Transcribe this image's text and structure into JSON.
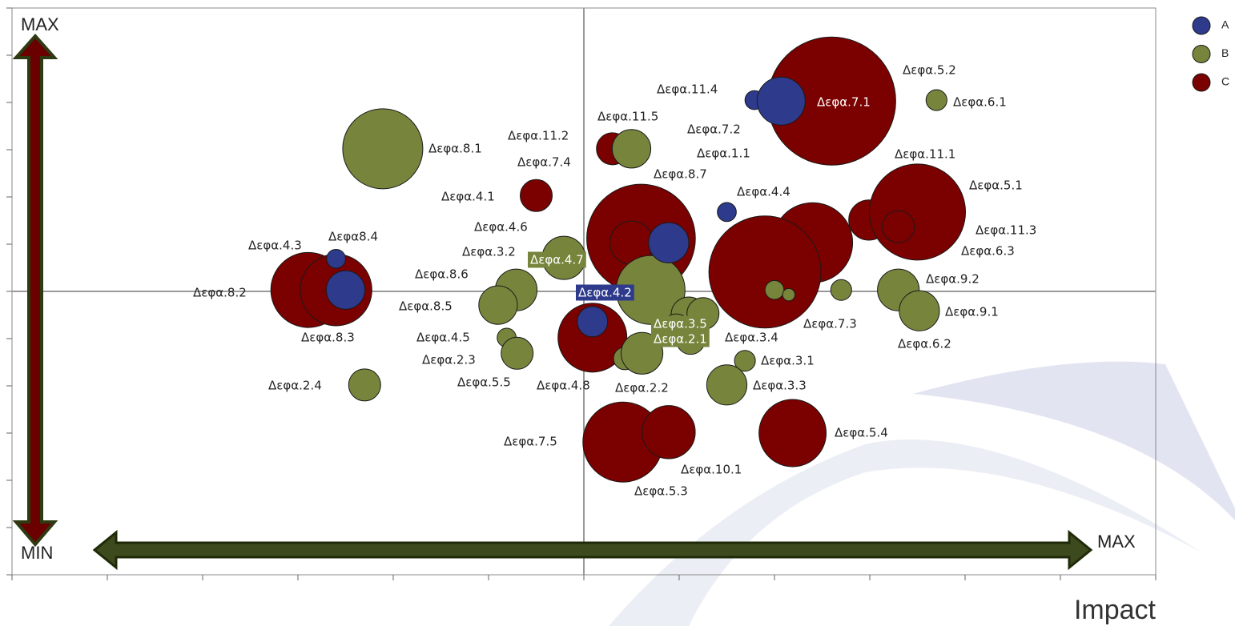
{
  "chart_data": {
    "type": "bubble",
    "x_label": "Impact",
    "y_max_label": "MAX",
    "y_min_label": "MIN",
    "x_max_label": "MAX",
    "xlim": [
      0,
      12
    ],
    "ylim": [
      0,
      12
    ],
    "xticks": [
      0,
      1,
      2,
      3,
      4,
      5,
      6,
      7,
      8,
      9,
      10,
      11,
      12
    ],
    "yticks": [
      0,
      1,
      2,
      3,
      4,
      5,
      6,
      7,
      8,
      9,
      10,
      11,
      12
    ],
    "reference_lines": {
      "x": 6,
      "y": 6
    },
    "legend": "top-right",
    "series": [
      {
        "name": "C",
        "color": "#7b0000",
        "labels": [
          "Δεφα.7.1",
          "Δεφα.5.2",
          "Δεφα.11.2",
          "Δεφα.4.1",
          "Δεφα.7.4",
          "Δεφα.4.6",
          "Δεφα.4.4",
          "Δεφα.11.1",
          "Δεφα.5.1",
          "Δεφα.11.3",
          "Δεφα.8.2",
          "Δεφα.8.3",
          "Δεφα.5.5",
          "Δεφα.7.5",
          "Δεφα.5.3",
          "Δεφα.5.4"
        ],
        "x": [
          8.6,
          8.4,
          6.3,
          5.5,
          6.6,
          6.5,
          7.9,
          8.99,
          9.5,
          9.3,
          3.11,
          3.4,
          6.09,
          6.41,
          6.89,
          8.19
        ],
        "values": [
          10.03,
          7.03,
          9.02,
          8.03,
          7.12,
          7.03,
          6.41,
          7.51,
          7.68,
          7.37,
          6.03,
          6.03,
          5.02,
          2.81,
          3.02,
          3.0
        ],
        "sizes": [
          64,
          25,
          4,
          4,
          46,
          7.3,
          49,
          6.3,
          36,
          4,
          22,
          20,
          18.5,
          25,
          11,
          17.6
        ]
      },
      {
        "name": "B",
        "color": "#77843c",
        "labels": [
          "Δεφα.6.1",
          "Δεφα.11.5",
          "Δεφα.8.1",
          "Δεφα.4.7",
          "Δεφα.8.6",
          "Δεφα.8.5",
          "Δεφα.3.2",
          "Δεφα.6.3",
          "Δεφα.7.3",
          "Δεφα.6.2",
          "Δεφα.9.2",
          "Δεφα.9.1",
          "Δεφα.3.5",
          "Δεφα.3.4",
          "Δεφα.2.1",
          "Δεφα.10.1",
          "Δεφα.4.8",
          "Δεφα.2.2",
          "Δεφα.3.1",
          "Δεφα.3.3",
          "Δεφα.4.5",
          "Δεφα.2.3",
          "Δεφα.2.4"
        ],
        "x": [
          9.7,
          6.5,
          3.89,
          5.79,
          5.29,
          5.1,
          6.7,
          8.0,
          8.15,
          8.7,
          9.3,
          9.52,
          7.1,
          7.25,
          6.97,
          7.12,
          6.43,
          6.61,
          7.69,
          7.5,
          5.19,
          5.3,
          3.7
        ],
        "values": [
          10.05,
          9.02,
          9.02,
          6.71,
          6.03,
          5.71,
          6.03,
          6.03,
          5.93,
          6.03,
          6.03,
          5.59,
          5.51,
          5.53,
          5.22,
          4.97,
          4.58,
          4.69,
          4.53,
          4.02,
          5.02,
          4.69,
          4.02
        ],
        "sizes": [
          1.7,
          5.8,
          25,
          7.3,
          6.8,
          5.8,
          18.5,
          1.4,
          0.6,
          1.7,
          6.8,
          6.3,
          4.8,
          4,
          3.2,
          3.2,
          2,
          6.8,
          1.7,
          6.3,
          1.4,
          4,
          4
        ]
      },
      {
        "name": "A",
        "color": "#2e3a8c",
        "labels": [
          "Δεφα.11.4",
          "Δεφα.7.2",
          "Δεφα.1.1",
          "Δεφα.8.7",
          "Δεφα.4.3",
          "Δεφα8.4",
          "Δεφα.4.2"
        ],
        "x": [
          7.79,
          8.07,
          7.5,
          6.89,
          3.4,
          3.5,
          6.09
        ],
        "values": [
          10.05,
          10.03,
          7.68,
          7.03,
          6.69,
          6.03,
          5.36
        ],
        "sizes": [
          1.4,
          9,
          1.4,
          6.3,
          1.4,
          5.8,
          3.6
        ]
      }
    ]
  }
}
